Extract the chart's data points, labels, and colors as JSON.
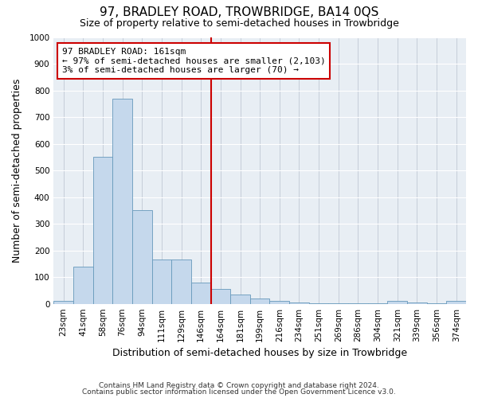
{
  "title": "97, BRADLEY ROAD, TROWBRIDGE, BA14 0QS",
  "subtitle": "Size of property relative to semi-detached houses in Trowbridge",
  "xlabel": "Distribution of semi-detached houses by size in Trowbridge",
  "ylabel": "Number of semi-detached properties",
  "footer1": "Contains HM Land Registry data © Crown copyright and database right 2024.",
  "footer2": "Contains public sector information licensed under the Open Government Licence v3.0.",
  "annotation_title": "97 BRADLEY ROAD: 161sqm",
  "annotation_line1": "← 97% of semi-detached houses are smaller (2,103)",
  "annotation_line2": "3% of semi-detached houses are larger (70) →",
  "categories": [
    "23sqm",
    "41sqm",
    "58sqm",
    "76sqm",
    "94sqm",
    "111sqm",
    "129sqm",
    "146sqm",
    "164sqm",
    "181sqm",
    "199sqm",
    "216sqm",
    "234sqm",
    "251sqm",
    "269sqm",
    "286sqm",
    "304sqm",
    "321sqm",
    "339sqm",
    "356sqm",
    "374sqm"
  ],
  "values": [
    10,
    140,
    550,
    770,
    350,
    165,
    165,
    80,
    55,
    35,
    20,
    10,
    5,
    3,
    2,
    2,
    2,
    10,
    5,
    2,
    10
  ],
  "bar_color": "#c5d8ec",
  "bar_edge_color": "#6699bb",
  "vline_color": "#cc0000",
  "annotation_box_edge": "#cc0000",
  "background_color": "#e8eef4",
  "grid_color": "#c0c8d4",
  "ylim": [
    0,
    1000
  ],
  "vline_x_index": 8,
  "title_fontsize": 11,
  "subtitle_fontsize": 9,
  "annotation_fontsize": 8,
  "tick_fontsize": 7.5,
  "xlabel_fontsize": 9,
  "ylabel_fontsize": 9
}
